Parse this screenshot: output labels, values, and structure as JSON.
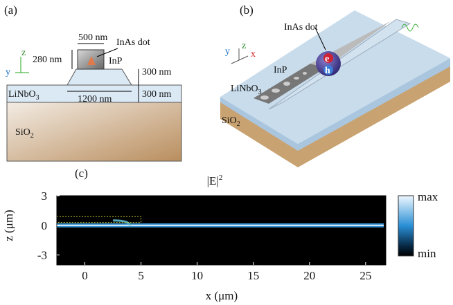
{
  "panel_a": {
    "label": "(a)",
    "width_top": "500 nm",
    "dot": "InAs dot",
    "height_inp": "280 nm",
    "inp": "InP",
    "height_ridge": "300 nm",
    "linbo3": {
      "main": "LiNbO",
      "sub": "3"
    },
    "width_bottom": "1200 nm",
    "height_layer": "300 nm",
    "sio2": {
      "main": "SiO",
      "sub": "2"
    },
    "axis_z": "z",
    "axis_y": "y"
  },
  "panel_b": {
    "label": "(b)",
    "dot": "InAs dot",
    "inp": "InP",
    "linbo3": {
      "main": "LiNbO",
      "sub": "3"
    },
    "sio2": {
      "main": "SiO",
      "sub": "2"
    },
    "electron": "e",
    "hole": "h",
    "axis_y": "y",
    "axis_z": "z",
    "axis_x": "x"
  },
  "chart_data": {
    "type": "heatmap",
    "label": "(c)",
    "title": "|E|",
    "title_superscript": "2",
    "x_label": "x (μm)",
    "y_label": "z (μm)",
    "xlim": [
      -2.5,
      26.8
    ],
    "ylim": [
      -4,
      3
    ],
    "xticks": [
      0,
      5,
      10,
      15,
      20,
      25
    ],
    "yticks": [
      3,
      0,
      -3
    ],
    "colorbar_max": "max",
    "colorbar_min": "min"
  }
}
